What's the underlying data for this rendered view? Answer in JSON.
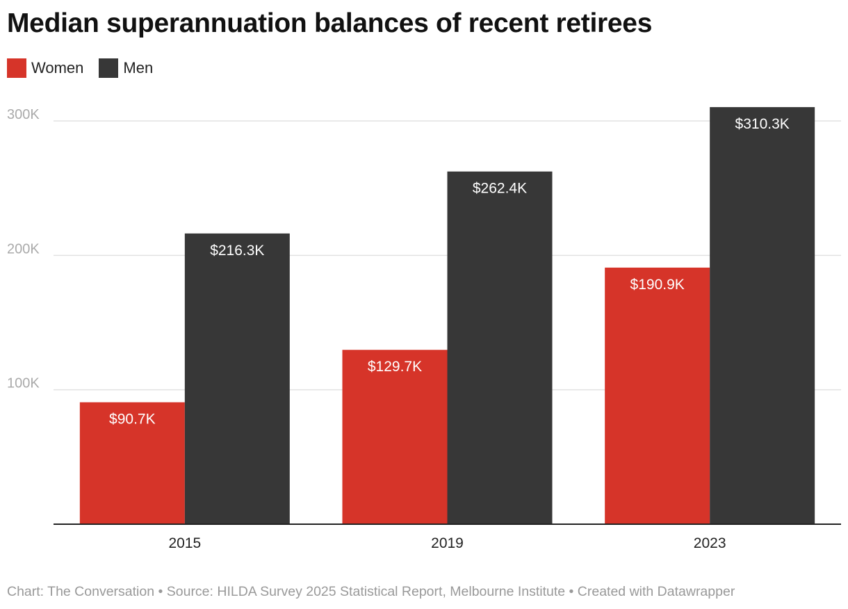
{
  "chart_data": {
    "type": "bar",
    "title": "Median superannuation balances of recent retirees",
    "categories": [
      "2015",
      "2019",
      "2023"
    ],
    "series": [
      {
        "name": "Women",
        "color": "#d63429",
        "values": [
          90.7,
          129.7,
          190.9
        ],
        "labels": [
          "$90.7K",
          "$129.7K",
          "$190.9K"
        ]
      },
      {
        "name": "Men",
        "color": "#373737",
        "values": [
          216.3,
          262.4,
          310.3
        ],
        "labels": [
          "$216.3K",
          "$262.4K",
          "$310.3K"
        ]
      }
    ],
    "yticks": [
      100,
      200,
      300
    ],
    "ytick_labels": [
      "100K",
      "200K",
      "300K"
    ],
    "ylim": [
      0,
      300
    ],
    "unit": "thousand AUD",
    "grid": true,
    "legend": "top-left",
    "xlabel": "",
    "ylabel": ""
  },
  "footer": "Chart: The Conversation • Source: HILDA Survey 2025 Statistical Report, Melbourne Institute • Created with Datawrapper"
}
